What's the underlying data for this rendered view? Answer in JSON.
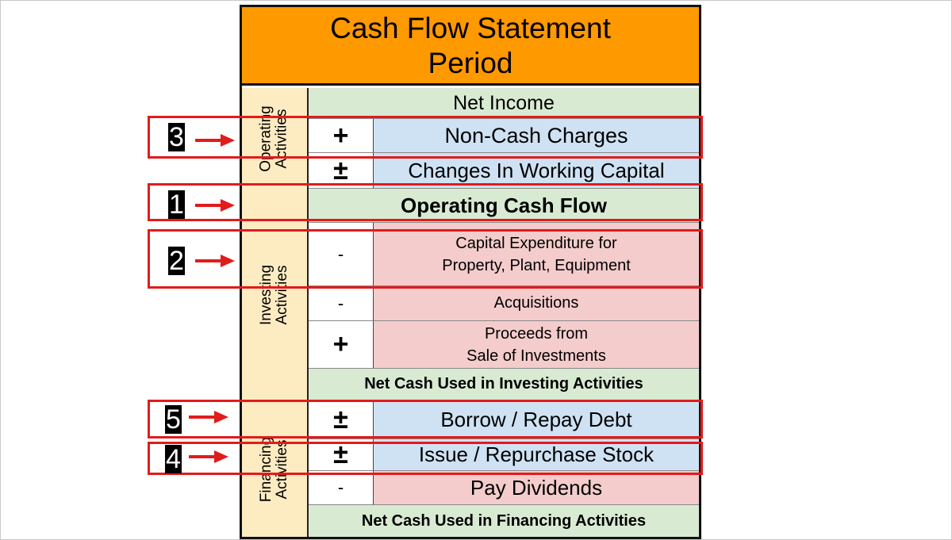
{
  "title": {
    "line1": "Cash Flow Statement",
    "line2": "Period"
  },
  "sections": {
    "operating": "Operating\nActivities",
    "investing": "Investing\nActivities",
    "financing": "Financing\nActivities"
  },
  "rows": {
    "net_income": "Net Income",
    "non_cash_sign": "+",
    "non_cash": "Non-Cash Charges",
    "wc_sign": "±",
    "wc": "Changes In Working Capital",
    "ocf": "Operating Cash Flow",
    "capex_sign": "-",
    "capex_line1": "Capital Expenditure for",
    "capex_line2": "Property, Plant, Equipment",
    "acq_sign": "-",
    "acq": "Acquisitions",
    "proceeds_sign": "+",
    "proceeds_line1": "Proceeds from",
    "proceeds_line2": "Sale of Investments",
    "net_investing": "Net Cash Used in Investing Activities",
    "debt_sign": "±",
    "debt": "Borrow / Repay Debt",
    "stock_sign": "±",
    "stock": "Issue / Repurchase Stock",
    "div_sign": "-",
    "div": "Pay Dividends",
    "net_financing": "Net Cash Used in Financing Activities"
  },
  "badges": {
    "b1": "1",
    "b2": "2",
    "b3": "3",
    "b4": "4",
    "b5": "5"
  },
  "colors": {
    "header": "#ff9900",
    "section": "#fdebc2",
    "green": "#d9ead3",
    "blue": "#cfe2f3",
    "pink": "#f4cccc",
    "highlight": "#e21b1b"
  }
}
